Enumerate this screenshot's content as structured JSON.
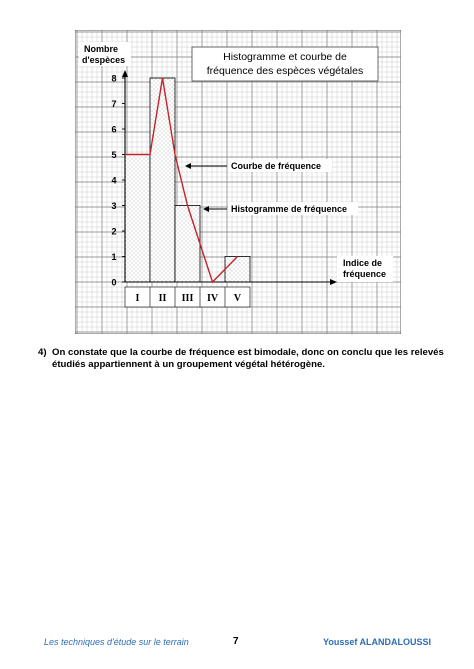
{
  "chart_data": {
    "type": "bar",
    "title": "Histogramme et courbe de fréquence des espèces végétales",
    "title_lines": [
      "Histogramme et courbe de",
      "fréquence des espèces végétales"
    ],
    "ylabel_lines": [
      "Nombre",
      "d'espèces"
    ],
    "xlabel_lines": [
      "Indice de",
      "fréquence"
    ],
    "categories": [
      "I",
      "II",
      "III",
      "IV",
      "V"
    ],
    "values": [
      5,
      8,
      3,
      0,
      1
    ],
    "y_ticks": [
      "0",
      "1",
      "2",
      "3",
      "4",
      "5",
      "6",
      "7",
      "8"
    ],
    "ylim": [
      0,
      8
    ],
    "grid": true,
    "frequency_curve": {
      "points": [
        [
          0,
          5
        ],
        [
          1,
          5
        ],
        [
          1.5,
          8
        ],
        [
          2,
          5
        ],
        [
          2.5,
          3
        ],
        [
          3.5,
          0
        ],
        [
          4.5,
          1
        ]
      ]
    },
    "annotations": [
      {
        "label": "Courbe de fréquence",
        "target": "curve"
      },
      {
        "label": "Histogramme de fréquence",
        "target": "histogram"
      }
    ],
    "colors": {
      "curve": "#c0262c",
      "grid_minor": "#b8b8b8",
      "grid_major": "#7a7a7a",
      "bars": "#d9d9d9"
    }
  },
  "note": {
    "number": "4)",
    "text": "On constate que la courbe de fréquence est bimodale, donc on conclu que les relevés étudiés appartiennent à un groupement végétal hétérogène."
  },
  "footer": {
    "left": "Les techniques d'étude sur le terrain",
    "page": "7",
    "right": "Youssef ALANDALOUSSI"
  }
}
